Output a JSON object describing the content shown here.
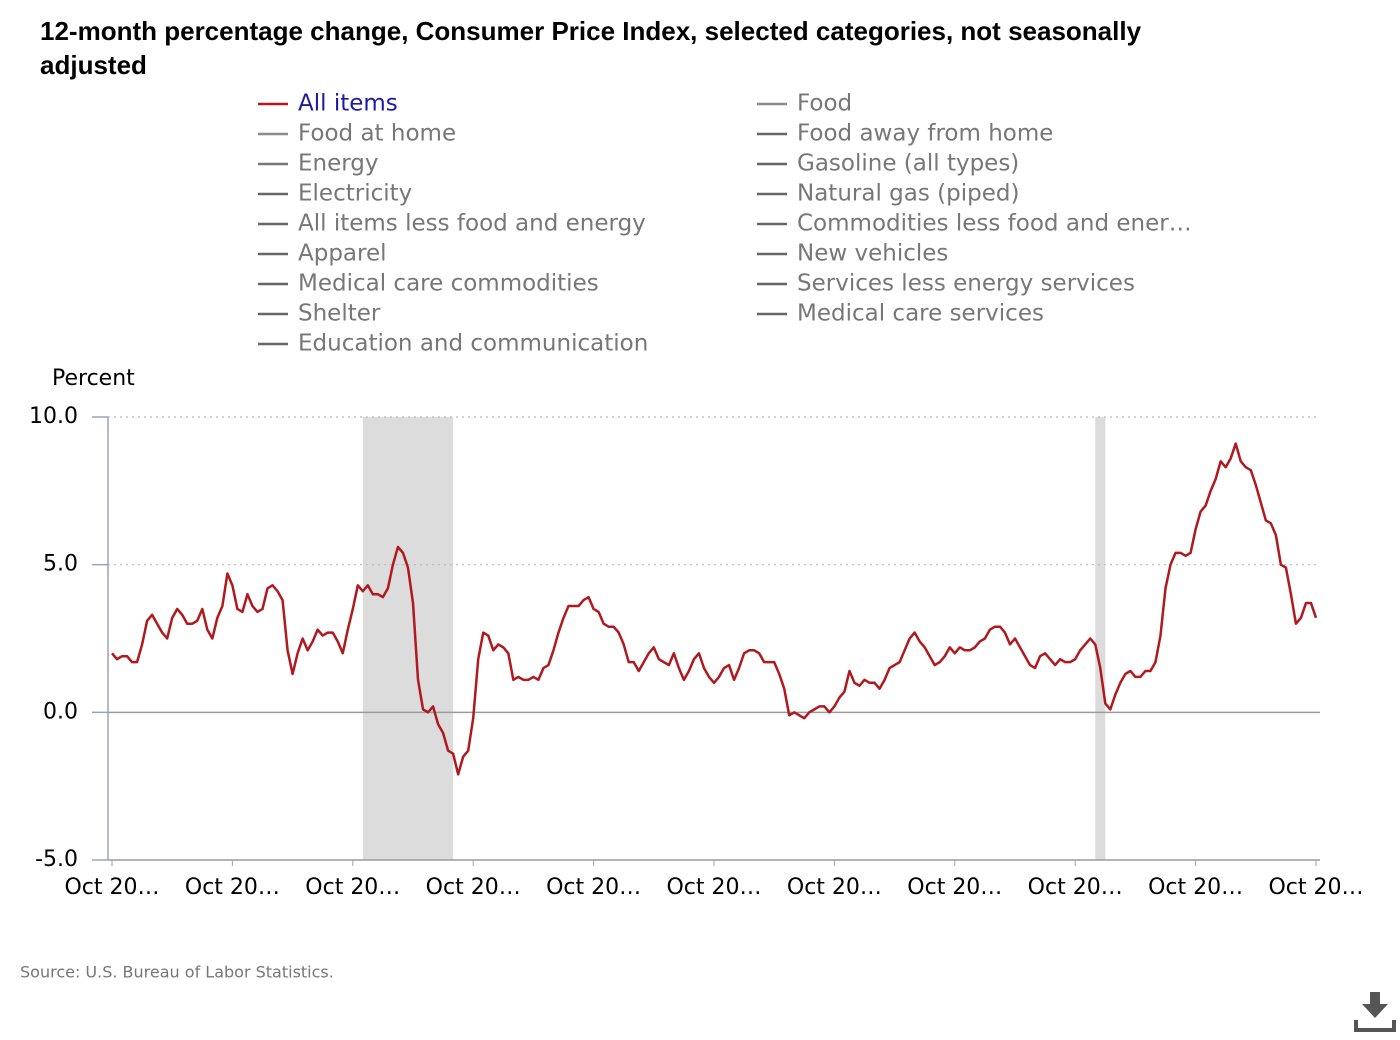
{
  "chart_data": {
    "type": "line",
    "title": [
      "12-month percentage change, Consumer Price Index, selected categories, not seasonally",
      "adjusted"
    ],
    "y_label": "Percent",
    "source": "Source: U.S. Bureau of Labor Statistics.",
    "xlim": [
      0,
      240
    ],
    "xticks": [
      {
        "value": 0,
        "label": "Oct 20…"
      },
      {
        "value": 24,
        "label": "Oct 20…"
      },
      {
        "value": 48,
        "label": "Oct 20…"
      },
      {
        "value": 72,
        "label": "Oct 20…"
      },
      {
        "value": 96,
        "label": "Oct 20…"
      },
      {
        "value": 120,
        "label": "Oct 20…"
      },
      {
        "value": 144,
        "label": "Oct 20…"
      },
      {
        "value": 168,
        "label": "Oct 20…"
      },
      {
        "value": 192,
        "label": "Oct 20…"
      },
      {
        "value": 216,
        "label": "Oct 20…"
      },
      {
        "value": 240,
        "label": "Oct 20…"
      }
    ],
    "ylim": [
      -5,
      10
    ],
    "yticks": [
      {
        "value": 10,
        "label": "10.0"
      },
      {
        "value": 5,
        "label": "5.0"
      },
      {
        "value": 0,
        "label": "0.0"
      },
      {
        "value": -5,
        "label": "-5.0"
      }
    ],
    "grid": true,
    "shaded_ranges": [
      [
        50,
        68
      ],
      [
        196,
        198
      ]
    ],
    "shade_color": "#dcdcdc",
    "series": [
      {
        "name": "All items",
        "color": "#b0191e",
        "legend_text_color": "#1c1ca0",
        "values": [
          2.0,
          1.8,
          1.9,
          1.9,
          1.7,
          1.7,
          2.3,
          3.1,
          3.3,
          3.0,
          2.7,
          2.5,
          3.2,
          3.5,
          3.3,
          3.0,
          3.0,
          3.1,
          3.5,
          2.8,
          2.5,
          3.2,
          3.6,
          4.7,
          4.3,
          3.5,
          3.4,
          4.0,
          3.6,
          3.4,
          3.5,
          4.2,
          4.3,
          4.1,
          3.8,
          2.1,
          1.3,
          2.0,
          2.5,
          2.1,
          2.4,
          2.8,
          2.6,
          2.7,
          2.7,
          2.4,
          2.0,
          2.8,
          3.5,
          4.3,
          4.1,
          4.3,
          4.0,
          4.0,
          3.9,
          4.2,
          5.0,
          5.6,
          5.4,
          4.9,
          3.7,
          1.1,
          0.1,
          0.0,
          0.2,
          -0.4,
          -0.7,
          -1.3,
          -1.4,
          -2.1,
          -1.5,
          -1.3,
          -0.2,
          1.8,
          2.7,
          2.6,
          2.1,
          2.3,
          2.2,
          2.0,
          1.1,
          1.2,
          1.1,
          1.1,
          1.2,
          1.1,
          1.5,
          1.6,
          2.1,
          2.7,
          3.2,
          3.6,
          3.6,
          3.6,
          3.8,
          3.9,
          3.5,
          3.4,
          3.0,
          2.9,
          2.9,
          2.7,
          2.3,
          1.7,
          1.7,
          1.4,
          1.7,
          2.0,
          2.2,
          1.8,
          1.7,
          1.6,
          2.0,
          1.5,
          1.1,
          1.4,
          1.8,
          2.0,
          1.5,
          1.2,
          1.0,
          1.2,
          1.5,
          1.6,
          1.1,
          1.5,
          2.0,
          2.1,
          2.1,
          2.0,
          1.7,
          1.7,
          1.7,
          1.3,
          0.8,
          -0.1,
          0.0,
          -0.1,
          -0.2,
          0.0,
          0.1,
          0.2,
          0.2,
          0.0,
          0.2,
          0.5,
          0.7,
          1.4,
          1.0,
          0.9,
          1.1,
          1.0,
          1.0,
          0.8,
          1.1,
          1.5,
          1.6,
          1.7,
          2.1,
          2.5,
          2.7,
          2.4,
          2.2,
          1.9,
          1.6,
          1.7,
          1.9,
          2.2,
          2.0,
          2.2,
          2.1,
          2.1,
          2.2,
          2.4,
          2.5,
          2.8,
          2.9,
          2.9,
          2.7,
          2.3,
          2.5,
          2.2,
          1.9,
          1.6,
          1.5,
          1.9,
          2.0,
          1.8,
          1.6,
          1.8,
          1.7,
          1.7,
          1.8,
          2.1,
          2.3,
          2.5,
          2.3,
          1.5,
          0.3,
          0.1,
          0.6,
          1.0,
          1.3,
          1.4,
          1.2,
          1.2,
          1.4,
          1.4,
          1.7,
          2.6,
          4.2,
          5.0,
          5.4,
          5.4,
          5.3,
          5.4,
          6.2,
          6.8,
          7.0,
          7.5,
          7.9,
          8.5,
          8.3,
          8.6,
          9.1,
          8.5,
          8.3,
          8.2,
          7.7,
          7.1,
          6.5,
          6.4,
          6.0,
          5.0,
          4.9,
          4.0,
          3.0,
          3.2,
          3.7,
          3.7,
          3.2
        ]
      }
    ],
    "legend_inactive": [
      {
        "name": "Food",
        "color": "#8a8a8a"
      },
      {
        "name": "Food at home",
        "color": "#8a8a8a"
      },
      {
        "name": "Food away from home",
        "color": "#666666"
      },
      {
        "name": "Energy",
        "color": "#777777"
      },
      {
        "name": "Gasoline (all types)",
        "color": "#666666"
      },
      {
        "name": "Electricity",
        "color": "#666666"
      },
      {
        "name": "Natural gas (piped)",
        "color": "#666666"
      },
      {
        "name": "All items less food and energy",
        "color": "#666666"
      },
      {
        "name": "Commodities less food and ener…",
        "color": "#666666"
      },
      {
        "name": "Apparel",
        "color": "#666666"
      },
      {
        "name": "New vehicles",
        "color": "#666666"
      },
      {
        "name": "Medical care commodities",
        "color": "#666666"
      },
      {
        "name": "Services less energy services",
        "color": "#666666"
      },
      {
        "name": "Shelter",
        "color": "#666666"
      },
      {
        "name": "Medical care services",
        "color": "#666666"
      },
      {
        "name": "Education and communication",
        "color": "#666666"
      }
    ]
  }
}
